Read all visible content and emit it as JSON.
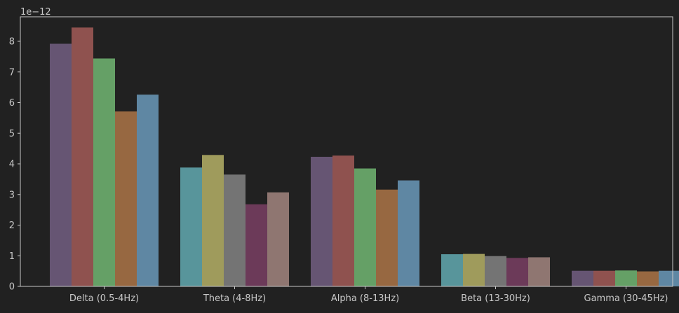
{
  "chart_data": {
    "type": "bar",
    "title": "",
    "xlabel": "",
    "ylabel": "",
    "offset_label": "1e−12",
    "categories": [
      "Delta (0.5-4Hz)",
      "Theta (4-8Hz)",
      "Alpha (8-13Hz)",
      "Beta (13-30Hz)",
      "Gamma (30-45Hz)"
    ],
    "ylim": [
      0,
      8.8
    ],
    "yticks": [
      0,
      1,
      2,
      3,
      4,
      5,
      6,
      7,
      8
    ],
    "grid": false,
    "legend": "none",
    "values": [
      [
        7.92,
        8.45,
        7.44,
        5.71,
        6.26
      ],
      [
        3.88,
        4.29,
        3.65,
        2.68,
        3.07
      ],
      [
        4.23,
        4.27,
        3.85,
        3.16,
        3.46
      ],
      [
        1.05,
        1.06,
        0.99,
        0.93,
        0.95
      ],
      [
        0.51,
        0.51,
        0.52,
        0.49,
        0.51
      ]
    ],
    "bar_colors": [
      [
        "#665573",
        "#8f524f",
        "#65a066",
        "#976841",
        "#5f87a3"
      ],
      [
        "#58959b",
        "#9f9b5c",
        "#747474",
        "#6c3a59",
        "#8f7671"
      ],
      [
        "#665573",
        "#8f524f",
        "#65a066",
        "#976841",
        "#5f87a3"
      ],
      [
        "#58959b",
        "#9f9b5c",
        "#747474",
        "#6c3a59",
        "#8f7671"
      ],
      [
        "#665573",
        "#8f524f",
        "#65a066",
        "#976841",
        "#5f87a3"
      ]
    ],
    "colors": {
      "background": "#212121",
      "axes": "#c8c8c8",
      "text": "#c8c8c8"
    }
  }
}
